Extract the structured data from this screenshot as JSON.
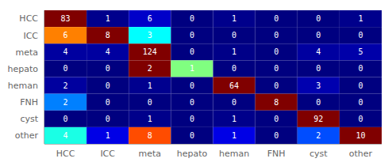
{
  "chart_data": {
    "type": "heatmap",
    "categories": [
      "HCC",
      "ICC",
      "meta",
      "hepato",
      "heman",
      "FNH",
      "cyst",
      "other"
    ],
    "rows": [
      "HCC",
      "ICC",
      "meta",
      "hepato",
      "heman",
      "FNH",
      "cyst",
      "other"
    ],
    "values": [
      [
        83,
        1,
        6,
        0,
        1,
        0,
        0,
        1
      ],
      [
        6,
        8,
        3,
        0,
        0,
        0,
        0,
        0
      ],
      [
        4,
        4,
        124,
        0,
        1,
        0,
        4,
        5
      ],
      [
        0,
        0,
        2,
        1,
        0,
        0,
        0,
        0
      ],
      [
        2,
        0,
        1,
        0,
        64,
        0,
        3,
        0
      ],
      [
        2,
        0,
        0,
        0,
        0,
        8,
        0,
        0
      ],
      [
        0,
        0,
        1,
        0,
        1,
        0,
        92,
        0
      ],
      [
        4,
        1,
        8,
        0,
        1,
        0,
        2,
        10
      ]
    ],
    "data_labels": true
  }
}
